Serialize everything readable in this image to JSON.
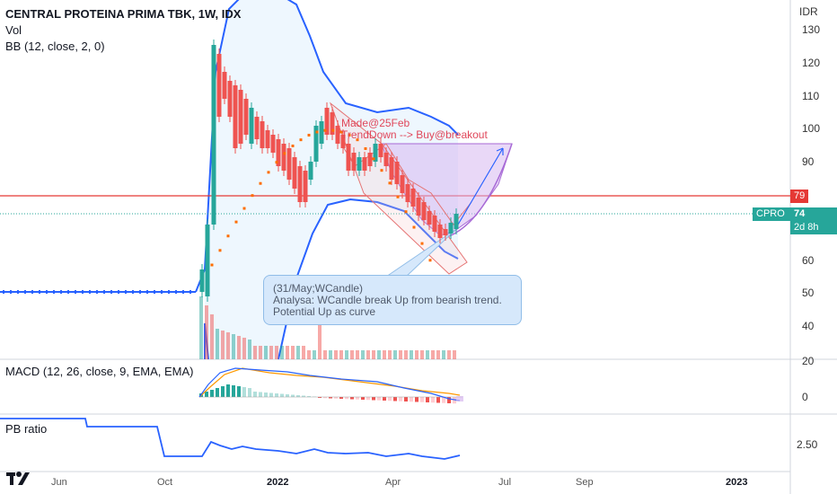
{
  "header": {
    "symbol_title": "CENTRAL PROTEINA PRIMA TBK, 1W, IDX",
    "vol_label": "Vol",
    "bb_label": "BB (12, close, 2, 0)",
    "currency": "IDR"
  },
  "macd": {
    "label": "MACD (12, 26, close, 9, EMA, EMA)"
  },
  "pb": {
    "label": "PB ratio"
  },
  "price_axis": [
    "130",
    "120",
    "110",
    "100",
    "90",
    "60",
    "50",
    "40"
  ],
  "sub_axis": {
    "macd_top": "20",
    "macd_zero": "0",
    "pb": "2.50"
  },
  "price_tags": {
    "resistance": "79",
    "ticker": "CPRO",
    "last": "74",
    "countdown": "2d 8h"
  },
  "annotations": {
    "made": "Made@25Feb",
    "trend": "TrendDown --> Buy@breakout",
    "callout_lines": [
      "(31/May;WCandle)",
      "Analysa: WCandle break Up from bearish trend.",
      "Potential Up as curve"
    ]
  },
  "time_axis": [
    "Jun",
    "Oct",
    "2022",
    "Apr",
    "Jul",
    "Sep",
    "2023"
  ],
  "colors": {
    "up": "#26a69a",
    "down": "#ef5350",
    "bb": "#2962ff",
    "resistance": "#e53935",
    "macd": "#2962ff",
    "signal": "#ff9800"
  },
  "icons": {
    "tv_logo": "tradingview-logo-icon"
  }
}
